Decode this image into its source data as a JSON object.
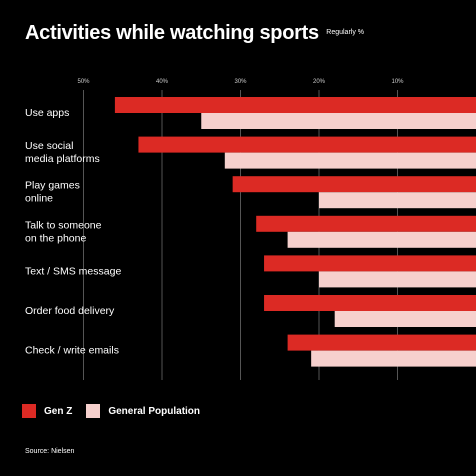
{
  "header": {
    "title": "Activities while watching sports",
    "subtitle": "Regularly %"
  },
  "legend": [
    {
      "label": "Gen Z",
      "color": "#dc2a24"
    },
    {
      "label": "General Population",
      "color": "#f6d0cd"
    }
  ],
  "source": "Source: Nielsen",
  "chart_data": {
    "type": "bar",
    "orientation": "horizontal",
    "x_reversed": true,
    "xlim": [
      0,
      50
    ],
    "ticks": [
      {
        "value": 50,
        "label": "50%"
      },
      {
        "value": 40,
        "label": "40%"
      },
      {
        "value": 30,
        "label": "30%"
      },
      {
        "value": 20,
        "label": "20%"
      },
      {
        "value": 10,
        "label": "10%"
      }
    ],
    "grid": true,
    "legend_position": "bottom-left",
    "categories": [
      [
        "Use apps"
      ],
      [
        "Use social",
        "media platforms"
      ],
      [
        "Play games",
        "online"
      ],
      [
        "Talk to someone",
        "on the phone"
      ],
      [
        "Text / SMS message"
      ],
      [
        "Order food delivery"
      ],
      [
        "Check / write emails"
      ]
    ],
    "series": [
      {
        "name": "Gen Z",
        "color": "#dc2a24",
        "values": [
          46,
          43,
          31,
          28,
          27,
          27,
          24
        ]
      },
      {
        "name": "General Population",
        "color": "#f6d0cd",
        "values": [
          35,
          32,
          20,
          24,
          20,
          18,
          21
        ]
      }
    ]
  }
}
